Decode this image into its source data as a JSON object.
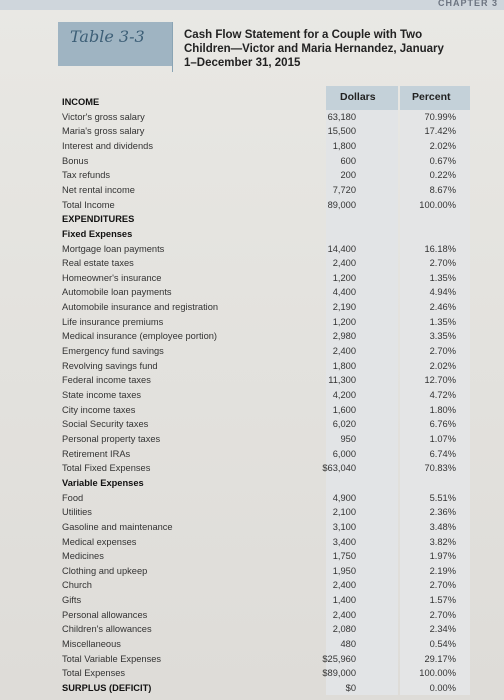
{
  "header": {
    "running_head": "CHAPTER 3"
  },
  "table": {
    "tag": "Table 3-3",
    "caption": "Cash Flow Statement for a Couple with Two Children—Victor and Maria Hernandez, January 1–December 31, 2015",
    "col_dollars": "Dollars",
    "col_percent": "Percent"
  },
  "rows": [
    {
      "label": "INCOME",
      "bold": true,
      "dollars": "",
      "percent": ""
    },
    {
      "label": "Victor's gross salary",
      "dollars": "63,180",
      "percent": "70.99%"
    },
    {
      "label": "Maria's gross salary",
      "dollars": "15,500",
      "percent": "17.42%"
    },
    {
      "label": "Interest and dividends",
      "dollars": "1,800",
      "percent": "2.02%"
    },
    {
      "label": "Bonus",
      "dollars": "600",
      "percent": "0.67%"
    },
    {
      "label": "Tax refunds",
      "dollars": "200",
      "percent": "0.22%"
    },
    {
      "label": "Net rental income",
      "dollars": "7,720",
      "percent": "8.67%"
    },
    {
      "label": "Total Income",
      "dollars": "89,000",
      "percent": "100.00%"
    },
    {
      "label": "EXPENDITURES",
      "bold": true,
      "dollars": "",
      "percent": ""
    },
    {
      "label": "Fixed Expenses",
      "bold": true,
      "dollars": "",
      "percent": ""
    },
    {
      "label": "Mortgage loan payments",
      "dollars": "14,400",
      "percent": "16.18%"
    },
    {
      "label": "Real estate taxes",
      "dollars": "2,400",
      "percent": "2.70%"
    },
    {
      "label": "Homeowner's insurance",
      "dollars": "1,200",
      "percent": "1.35%"
    },
    {
      "label": "Automobile loan payments",
      "dollars": "4,400",
      "percent": "4.94%"
    },
    {
      "label": "Automobile insurance and registration",
      "dollars": "2,190",
      "percent": "2.46%"
    },
    {
      "label": "Life insurance premiums",
      "dollars": "1,200",
      "percent": "1.35%"
    },
    {
      "label": "Medical insurance (employee portion)",
      "dollars": "2,980",
      "percent": "3.35%"
    },
    {
      "label": "Emergency fund savings",
      "dollars": "2,400",
      "percent": "2.70%"
    },
    {
      "label": "Revolving savings fund",
      "dollars": "1,800",
      "percent": "2.02%"
    },
    {
      "label": "Federal income taxes",
      "dollars": "11,300",
      "percent": "12.70%"
    },
    {
      "label": "State income taxes",
      "dollars": "4,200",
      "percent": "4.72%"
    },
    {
      "label": "City income taxes",
      "dollars": "1,600",
      "percent": "1.80%"
    },
    {
      "label": "Social Security taxes",
      "dollars": "6,020",
      "percent": "6.76%"
    },
    {
      "label": "Personal property taxes",
      "dollars": "950",
      "percent": "1.07%"
    },
    {
      "label": "Retirement IRAs",
      "dollars": "6,000",
      "percent": "6.74%"
    },
    {
      "label": "Total Fixed Expenses",
      "dollars": "$63,040",
      "percent": "70.83%"
    },
    {
      "label": "Variable Expenses",
      "bold": true,
      "dollars": "",
      "percent": ""
    },
    {
      "label": "Food",
      "dollars": "4,900",
      "percent": "5.51%"
    },
    {
      "label": "Utilities",
      "dollars": "2,100",
      "percent": "2.36%"
    },
    {
      "label": "Gasoline and maintenance",
      "dollars": "3,100",
      "percent": "3.48%"
    },
    {
      "label": "Medical expenses",
      "dollars": "3,400",
      "percent": "3.82%"
    },
    {
      "label": "Medicines",
      "dollars": "1,750",
      "percent": "1.97%"
    },
    {
      "label": "Clothing and upkeep",
      "dollars": "1,950",
      "percent": "2.19%"
    },
    {
      "label": "Church",
      "dollars": "2,400",
      "percent": "2.70%"
    },
    {
      "label": "Gifts",
      "dollars": "1,400",
      "percent": "1.57%"
    },
    {
      "label": "Personal allowances",
      "dollars": "2,400",
      "percent": "2.70%"
    },
    {
      "label": "Children's allowances",
      "dollars": "2,080",
      "percent": "2.34%"
    },
    {
      "label": "Miscellaneous",
      "dollars": "480",
      "percent": "0.54%"
    },
    {
      "label": "Total Variable Expenses",
      "dollars": "$25,960",
      "percent": "29.17%"
    },
    {
      "label": "Total Expenses",
      "dollars": "$89,000",
      "percent": "100.00%"
    },
    {
      "label": "SURPLUS (DEFICIT)",
      "bold": true,
      "dollars": "$0",
      "percent": "0.00%"
    }
  ]
}
